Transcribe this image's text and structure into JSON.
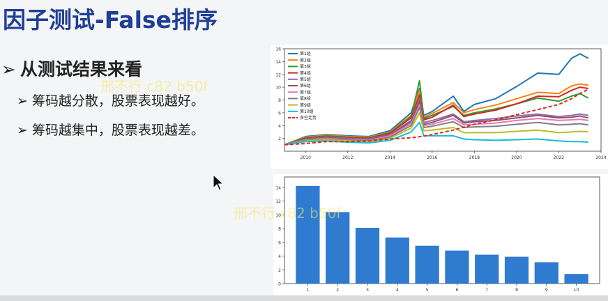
{
  "slide": {
    "title": "因子测试-False排序",
    "bullet_main": "从测试结果来看",
    "bullets": [
      "筹码越分散，股票表现越好。",
      "筹码越集中，股票表现越差。"
    ]
  },
  "watermark": "邢不行 c82 b50f",
  "chart_data": [
    {
      "type": "line",
      "x_ticks": [
        "2010",
        "2012",
        "2014",
        "2016",
        "2018",
        "2020",
        "2022",
        "2024"
      ],
      "y_ticks": [
        2,
        4,
        6,
        8,
        10,
        12,
        14,
        16
      ],
      "xlim": [
        2009,
        2024
      ],
      "ylim": [
        0,
        16
      ],
      "legend_position": "top-left",
      "series": [
        {
          "name": "第1组",
          "color": "#1f77b4",
          "dashed": false,
          "points": [
            [
              2009,
              1
            ],
            [
              2010,
              2.3
            ],
            [
              2011,
              2.6
            ],
            [
              2012,
              2.4
            ],
            [
              2013,
              2.3
            ],
            [
              2014,
              3.2
            ],
            [
              2015,
              6.0
            ],
            [
              2015.4,
              9.8
            ],
            [
              2015.6,
              5.6
            ],
            [
              2016,
              6.2
            ],
            [
              2017,
              8.6
            ],
            [
              2017.5,
              6.2
            ],
            [
              2018,
              7.3
            ],
            [
              2019,
              8.2
            ],
            [
              2020,
              10.1
            ],
            [
              2021,
              12.2
            ],
            [
              2022,
              12.0
            ],
            [
              2022.6,
              14.5
            ],
            [
              2023,
              15.2
            ],
            [
              2023.4,
              14.5
            ]
          ]
        },
        {
          "name": "第2组",
          "color": "#ff7f0e",
          "dashed": false,
          "points": [
            [
              2009,
              1
            ],
            [
              2010,
              2.2
            ],
            [
              2011,
              2.5
            ],
            [
              2012,
              2.3
            ],
            [
              2013,
              2.2
            ],
            [
              2014,
              3.0
            ],
            [
              2015,
              5.6
            ],
            [
              2015.4,
              9.5
            ],
            [
              2015.6,
              5.3
            ],
            [
              2016,
              5.9
            ],
            [
              2017,
              7.6
            ],
            [
              2017.5,
              6.0
            ],
            [
              2018,
              6.5
            ],
            [
              2019,
              7.2
            ],
            [
              2020,
              8.2
            ],
            [
              2021,
              9.2
            ],
            [
              2022,
              9.0
            ],
            [
              2022.6,
              10.2
            ],
            [
              2023,
              10.5
            ],
            [
              2023.4,
              10.3
            ]
          ]
        },
        {
          "name": "第3组",
          "color": "#2ca02c",
          "dashed": false,
          "points": [
            [
              2009,
              1
            ],
            [
              2010,
              2.1
            ],
            [
              2011,
              2.4
            ],
            [
              2012,
              2.2
            ],
            [
              2013,
              2.1
            ],
            [
              2014,
              2.9
            ],
            [
              2015,
              5.4
            ],
            [
              2015.4,
              11.0
            ],
            [
              2015.6,
              5.1
            ],
            [
              2016,
              5.6
            ],
            [
              2017,
              7.0
            ],
            [
              2017.5,
              5.6
            ],
            [
              2018,
              6.0
            ],
            [
              2019,
              6.6
            ],
            [
              2020,
              7.4
            ],
            [
              2021,
              8.3
            ],
            [
              2022,
              7.8
            ],
            [
              2022.6,
              8.6
            ],
            [
              2023,
              9.0
            ],
            [
              2023.4,
              8.3
            ]
          ]
        },
        {
          "name": "第4组",
          "color": "#d62728",
          "dashed": false,
          "points": [
            [
              2009,
              1
            ],
            [
              2010,
              2.0
            ],
            [
              2011,
              2.3
            ],
            [
              2012,
              2.1
            ],
            [
              2013,
              2.0
            ],
            [
              2014,
              2.8
            ],
            [
              2015,
              5.2
            ],
            [
              2015.4,
              8.8
            ],
            [
              2015.6,
              4.9
            ],
            [
              2016,
              5.3
            ],
            [
              2017,
              7.2
            ],
            [
              2017.5,
              5.4
            ],
            [
              2018,
              5.8
            ],
            [
              2019,
              6.4
            ],
            [
              2020,
              7.4
            ],
            [
              2021,
              8.6
            ],
            [
              2022,
              8.5
            ],
            [
              2022.6,
              9.5
            ],
            [
              2023,
              10.0
            ],
            [
              2023.4,
              9.8
            ]
          ]
        },
        {
          "name": "第5组",
          "color": "#9467bd",
          "dashed": false,
          "points": [
            [
              2009,
              1
            ],
            [
              2010,
              1.9
            ],
            [
              2011,
              2.2
            ],
            [
              2012,
              2.0
            ],
            [
              2013,
              1.9
            ],
            [
              2014,
              2.6
            ],
            [
              2015,
              4.8
            ],
            [
              2015.4,
              8.2
            ],
            [
              2015.6,
              4.5
            ],
            [
              2016,
              4.8
            ],
            [
              2017,
              5.8
            ],
            [
              2017.5,
              4.6
            ],
            [
              2018,
              4.8
            ],
            [
              2019,
              5.1
            ],
            [
              2020,
              5.5
            ],
            [
              2021,
              5.8
            ],
            [
              2022,
              5.4
            ],
            [
              2022.6,
              5.6
            ],
            [
              2023,
              5.8
            ],
            [
              2023.4,
              5.6
            ]
          ]
        },
        {
          "name": "第6组",
          "color": "#8c564b",
          "dashed": false,
          "points": [
            [
              2009,
              1
            ],
            [
              2010,
              1.9
            ],
            [
              2011,
              2.1
            ],
            [
              2012,
              1.9
            ],
            [
              2013,
              1.8
            ],
            [
              2014,
              2.5
            ],
            [
              2015,
              4.6
            ],
            [
              2015.4,
              7.8
            ],
            [
              2015.6,
              4.2
            ],
            [
              2016,
              4.5
            ],
            [
              2017,
              5.6
            ],
            [
              2017.5,
              4.4
            ],
            [
              2018,
              4.6
            ],
            [
              2019,
              4.8
            ],
            [
              2020,
              5.2
            ],
            [
              2021,
              5.6
            ],
            [
              2022,
              5.2
            ],
            [
              2022.6,
              5.3
            ],
            [
              2023,
              5.5
            ],
            [
              2023.4,
              5.2
            ]
          ]
        },
        {
          "name": "第7组",
          "color": "#e377c2",
          "dashed": false,
          "points": [
            [
              2009,
              1
            ],
            [
              2010,
              1.8
            ],
            [
              2011,
              2.0
            ],
            [
              2012,
              1.8
            ],
            [
              2013,
              1.7
            ],
            [
              2014,
              2.4
            ],
            [
              2015,
              4.3
            ],
            [
              2015.4,
              7.2
            ],
            [
              2015.6,
              4.0
            ],
            [
              2016,
              4.2
            ],
            [
              2017,
              5.1
            ],
            [
              2017.5,
              4.1
            ],
            [
              2018,
              4.2
            ],
            [
              2019,
              4.4
            ],
            [
              2020,
              4.8
            ],
            [
              2021,
              5.1
            ],
            [
              2022,
              4.8
            ],
            [
              2022.6,
              4.9
            ],
            [
              2023,
              5.0
            ],
            [
              2023.4,
              4.8
            ]
          ]
        },
        {
          "name": "第8组",
          "color": "#7f7f7f",
          "dashed": false,
          "points": [
            [
              2009,
              1
            ],
            [
              2010,
              1.7
            ],
            [
              2011,
              1.9
            ],
            [
              2012,
              1.7
            ],
            [
              2013,
              1.6
            ],
            [
              2014,
              2.2
            ],
            [
              2015,
              4.0
            ],
            [
              2015.4,
              6.8
            ],
            [
              2015.6,
              3.7
            ],
            [
              2016,
              3.9
            ],
            [
              2017,
              4.6
            ],
            [
              2017.5,
              3.7
            ],
            [
              2018,
              3.8
            ],
            [
              2019,
              3.9
            ],
            [
              2020,
              4.2
            ],
            [
              2021,
              4.5
            ],
            [
              2022,
              4.1
            ],
            [
              2022.6,
              4.2
            ],
            [
              2023,
              4.3
            ],
            [
              2023.4,
              4.1
            ]
          ]
        },
        {
          "name": "第9组",
          "color": "#bcbd22",
          "dashed": false,
          "points": [
            [
              2009,
              1
            ],
            [
              2010,
              1.6
            ],
            [
              2011,
              1.8
            ],
            [
              2012,
              1.6
            ],
            [
              2013,
              1.5
            ],
            [
              2014,
              2.0
            ],
            [
              2015,
              3.6
            ],
            [
              2015.4,
              6.0
            ],
            [
              2015.6,
              3.2
            ],
            [
              2016,
              3.3
            ],
            [
              2017,
              3.7
            ],
            [
              2017.5,
              2.9
            ],
            [
              2018,
              2.9
            ],
            [
              2019,
              2.9
            ],
            [
              2020,
              3.1
            ],
            [
              2021,
              3.3
            ],
            [
              2022,
              2.9
            ],
            [
              2022.6,
              3.0
            ],
            [
              2023,
              3.1
            ],
            [
              2023.4,
              3.0
            ]
          ]
        },
        {
          "name": "第10组",
          "color": "#17becf",
          "dashed": false,
          "points": [
            [
              2009,
              1
            ],
            [
              2010,
              1.5
            ],
            [
              2011,
              1.6
            ],
            [
              2012,
              1.4
            ],
            [
              2013,
              1.3
            ],
            [
              2014,
              1.7
            ],
            [
              2015,
              3.0
            ],
            [
              2015.4,
              4.5
            ],
            [
              2015.6,
              2.4
            ],
            [
              2016,
              2.4
            ],
            [
              2017,
              2.4
            ],
            [
              2017.5,
              1.9
            ],
            [
              2018,
              1.8
            ],
            [
              2019,
              1.7
            ],
            [
              2020,
              1.8
            ],
            [
              2021,
              1.9
            ],
            [
              2022,
              1.6
            ],
            [
              2022.6,
              1.5
            ],
            [
              2023,
              1.5
            ],
            [
              2023.4,
              1.4
            ]
          ]
        },
        {
          "name": "多空走势",
          "color": "#d62728",
          "dashed": true,
          "points": [
            [
              2009,
              1
            ],
            [
              2010,
              1.2
            ],
            [
              2011,
              1.5
            ],
            [
              2012,
              1.5
            ],
            [
              2013,
              1.6
            ],
            [
              2014,
              1.9
            ],
            [
              2015,
              2.1
            ],
            [
              2015.5,
              2.3
            ],
            [
              2016,
              2.6
            ],
            [
              2017,
              3.3
            ],
            [
              2018,
              4.2
            ],
            [
              2019,
              4.9
            ],
            [
              2020,
              5.7
            ],
            [
              2021,
              6.5
            ],
            [
              2022,
              7.3
            ],
            [
              2022.6,
              8.2
            ],
            [
              2023,
              9.0
            ],
            [
              2023.4,
              9.7
            ]
          ]
        }
      ]
    },
    {
      "type": "bar",
      "categories": [
        "1",
        "2",
        "3",
        "4",
        "5",
        "6",
        "7",
        "8",
        "9",
        "10"
      ],
      "values": [
        14.2,
        10.4,
        8.1,
        6.7,
        5.5,
        4.8,
        4.2,
        3.9,
        3.1,
        1.4
      ],
      "y_ticks": [
        0,
        2,
        4,
        6,
        8,
        10,
        12,
        14
      ],
      "ylim": [
        0,
        15.5
      ],
      "color": "#2f7bd0"
    }
  ]
}
